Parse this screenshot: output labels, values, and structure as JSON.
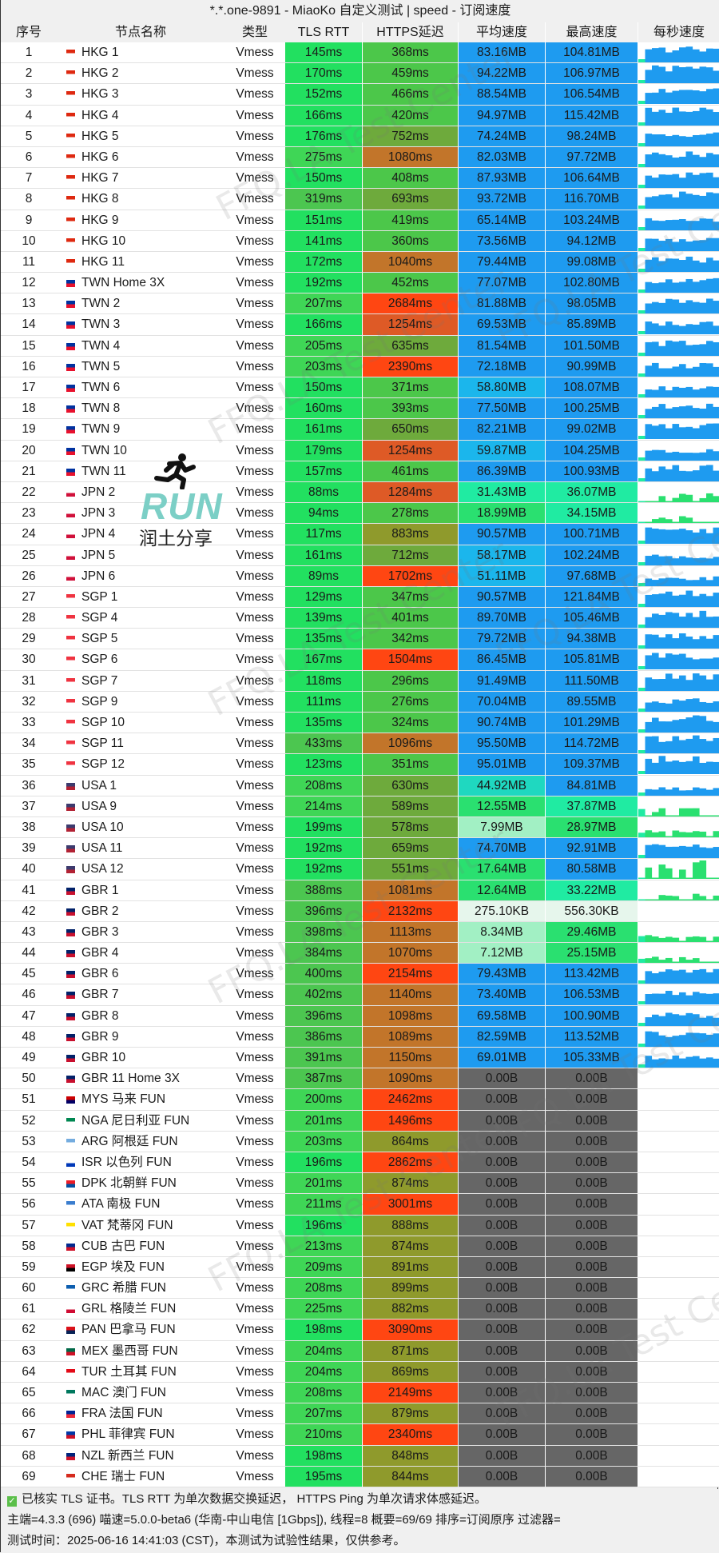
{
  "window": {
    "title": "*.*.one-9891 - MiaoKo 自定义测试 | speed - 订阅速度"
  },
  "columns": [
    "序号",
    "节点名称",
    "类型",
    "TLS RTT",
    "HTTPS延迟",
    "平均速度",
    "最高速度",
    "每秒速度"
  ],
  "rows": [
    [
      "1",
      "HKG",
      "HKG 1",
      "Vmess",
      "145ms",
      "368ms",
      "83.16MB",
      "104.81MB"
    ],
    [
      "2",
      "HKG",
      "HKG 2",
      "Vmess",
      "170ms",
      "459ms",
      "94.22MB",
      "106.97MB"
    ],
    [
      "3",
      "HKG",
      "HKG 3",
      "Vmess",
      "152ms",
      "466ms",
      "88.54MB",
      "106.54MB"
    ],
    [
      "4",
      "HKG",
      "HKG 4",
      "Vmess",
      "166ms",
      "420ms",
      "94.97MB",
      "115.42MB"
    ],
    [
      "5",
      "HKG",
      "HKG 5",
      "Vmess",
      "176ms",
      "752ms",
      "74.24MB",
      "98.24MB"
    ],
    [
      "6",
      "HKG",
      "HKG 6",
      "Vmess",
      "275ms",
      "1080ms",
      "82.03MB",
      "97.72MB"
    ],
    [
      "7",
      "HKG",
      "HKG 7",
      "Vmess",
      "150ms",
      "408ms",
      "87.93MB",
      "106.64MB"
    ],
    [
      "8",
      "HKG",
      "HKG 8",
      "Vmess",
      "319ms",
      "693ms",
      "93.72MB",
      "116.70MB"
    ],
    [
      "9",
      "HKG",
      "HKG 9",
      "Vmess",
      "151ms",
      "419ms",
      "65.14MB",
      "103.24MB"
    ],
    [
      "10",
      "HKG",
      "HKG 10",
      "Vmess",
      "141ms",
      "360ms",
      "73.56MB",
      "94.12MB"
    ],
    [
      "11",
      "HKG",
      "HKG 11",
      "Vmess",
      "172ms",
      "1040ms",
      "79.44MB",
      "99.08MB"
    ],
    [
      "12",
      "TWN",
      "TWN Home 3X",
      "Vmess",
      "192ms",
      "452ms",
      "77.07MB",
      "102.80MB"
    ],
    [
      "13",
      "TWN",
      "TWN 2",
      "Vmess",
      "207ms",
      "2684ms",
      "81.88MB",
      "98.05MB"
    ],
    [
      "14",
      "TWN",
      "TWN 3",
      "Vmess",
      "166ms",
      "1254ms",
      "69.53MB",
      "85.89MB"
    ],
    [
      "15",
      "TWN",
      "TWN 4",
      "Vmess",
      "205ms",
      "635ms",
      "81.54MB",
      "101.50MB"
    ],
    [
      "16",
      "TWN",
      "TWN 5",
      "Vmess",
      "203ms",
      "2390ms",
      "72.18MB",
      "90.99MB"
    ],
    [
      "17",
      "TWN",
      "TWN 6",
      "Vmess",
      "150ms",
      "371ms",
      "58.80MB",
      "108.07MB"
    ],
    [
      "18",
      "TWN",
      "TWN 8",
      "Vmess",
      "160ms",
      "393ms",
      "77.50MB",
      "100.25MB"
    ],
    [
      "19",
      "TWN",
      "TWN 9",
      "Vmess",
      "161ms",
      "650ms",
      "82.21MB",
      "99.02MB"
    ],
    [
      "20",
      "TWN",
      "TWN 10",
      "Vmess",
      "179ms",
      "1254ms",
      "59.87MB",
      "104.25MB"
    ],
    [
      "21",
      "TWN",
      "TWN 11",
      "Vmess",
      "157ms",
      "461ms",
      "86.39MB",
      "100.93MB"
    ],
    [
      "22",
      "JPN",
      "JPN 2",
      "Vmess",
      "88ms",
      "1284ms",
      "31.43MB",
      "36.07MB"
    ],
    [
      "23",
      "JPN",
      "JPN 3",
      "Vmess",
      "94ms",
      "278ms",
      "18.99MB",
      "34.15MB"
    ],
    [
      "24",
      "JPN",
      "JPN 4",
      "Vmess",
      "117ms",
      "883ms",
      "90.57MB",
      "100.71MB"
    ],
    [
      "25",
      "JPN",
      "JPN 5",
      "Vmess",
      "161ms",
      "712ms",
      "58.17MB",
      "102.24MB"
    ],
    [
      "26",
      "JPN",
      "JPN 6",
      "Vmess",
      "89ms",
      "1702ms",
      "51.11MB",
      "97.68MB"
    ],
    [
      "27",
      "SGP",
      "SGP 1",
      "Vmess",
      "129ms",
      "347ms",
      "90.57MB",
      "121.84MB"
    ],
    [
      "28",
      "SGP",
      "SGP 4",
      "Vmess",
      "139ms",
      "401ms",
      "89.70MB",
      "105.46MB"
    ],
    [
      "29",
      "SGP",
      "SGP 5",
      "Vmess",
      "135ms",
      "342ms",
      "79.72MB",
      "94.38MB"
    ],
    [
      "30",
      "SGP",
      "SGP 6",
      "Vmess",
      "167ms",
      "1504ms",
      "86.45MB",
      "105.81MB"
    ],
    [
      "31",
      "SGP",
      "SGP 7",
      "Vmess",
      "118ms",
      "296ms",
      "91.49MB",
      "111.50MB"
    ],
    [
      "32",
      "SGP",
      "SGP 9",
      "Vmess",
      "111ms",
      "276ms",
      "70.04MB",
      "89.55MB"
    ],
    [
      "33",
      "SGP",
      "SGP 10",
      "Vmess",
      "135ms",
      "324ms",
      "90.74MB",
      "101.29MB"
    ],
    [
      "34",
      "SGP",
      "SGP 11",
      "Vmess",
      "433ms",
      "1096ms",
      "95.50MB",
      "114.72MB"
    ],
    [
      "35",
      "SGP",
      "SGP 12",
      "Vmess",
      "123ms",
      "351ms",
      "95.01MB",
      "109.37MB"
    ],
    [
      "36",
      "USA",
      "USA 1",
      "Vmess",
      "208ms",
      "630ms",
      "44.92MB",
      "84.81MB"
    ],
    [
      "37",
      "USA",
      "USA 9",
      "Vmess",
      "214ms",
      "589ms",
      "12.55MB",
      "37.87MB"
    ],
    [
      "38",
      "USA",
      "USA 10",
      "Vmess",
      "199ms",
      "578ms",
      "7.99MB",
      "28.97MB"
    ],
    [
      "39",
      "USA",
      "USA 11",
      "Vmess",
      "192ms",
      "659ms",
      "74.70MB",
      "92.91MB"
    ],
    [
      "40",
      "USA",
      "USA 12",
      "Vmess",
      "192ms",
      "551ms",
      "17.64MB",
      "80.58MB"
    ],
    [
      "41",
      "GBR",
      "GBR 1",
      "Vmess",
      "388ms",
      "1081ms",
      "12.64MB",
      "33.22MB"
    ],
    [
      "42",
      "GBR",
      "GBR 2",
      "Vmess",
      "396ms",
      "2132ms",
      "275.10KB",
      "556.30KB"
    ],
    [
      "43",
      "GBR",
      "GBR 3",
      "Vmess",
      "398ms",
      "1113ms",
      "8.34MB",
      "29.46MB"
    ],
    [
      "44",
      "GBR",
      "GBR 4",
      "Vmess",
      "384ms",
      "1070ms",
      "7.12MB",
      "25.15MB"
    ],
    [
      "45",
      "GBR",
      "GBR 6",
      "Vmess",
      "400ms",
      "2154ms",
      "79.43MB",
      "113.42MB"
    ],
    [
      "46",
      "GBR",
      "GBR 7",
      "Vmess",
      "402ms",
      "1140ms",
      "73.40MB",
      "106.53MB"
    ],
    [
      "47",
      "GBR",
      "GBR 8",
      "Vmess",
      "396ms",
      "1098ms",
      "69.58MB",
      "100.90MB"
    ],
    [
      "48",
      "GBR",
      "GBR 9",
      "Vmess",
      "386ms",
      "1089ms",
      "82.59MB",
      "113.52MB"
    ],
    [
      "49",
      "GBR",
      "GBR 10",
      "Vmess",
      "391ms",
      "1150ms",
      "69.01MB",
      "105.33MB"
    ],
    [
      "50",
      "GBR",
      "GBR 11 Home 3X",
      "Vmess",
      "387ms",
      "1090ms",
      "0.00B",
      "0.00B"
    ],
    [
      "51",
      "MYS",
      "MYS 马来 FUN",
      "Vmess",
      "200ms",
      "2462ms",
      "0.00B",
      "0.00B"
    ],
    [
      "52",
      "NGA",
      "NGA 尼日利亚 FUN",
      "Vmess",
      "201ms",
      "1496ms",
      "0.00B",
      "0.00B"
    ],
    [
      "53",
      "ARG",
      "ARG 阿根廷 FUN",
      "Vmess",
      "203ms",
      "864ms",
      "0.00B",
      "0.00B"
    ],
    [
      "54",
      "ISR",
      "ISR 以色列 FUN",
      "Vmess",
      "196ms",
      "2862ms",
      "0.00B",
      "0.00B"
    ],
    [
      "55",
      "PRK",
      "DPK 北朝鲜 FUN",
      "Vmess",
      "201ms",
      "874ms",
      "0.00B",
      "0.00B"
    ],
    [
      "56",
      "ATA",
      "ATA 南极 FUN",
      "Vmess",
      "211ms",
      "3001ms",
      "0.00B",
      "0.00B"
    ],
    [
      "57",
      "VAT",
      "VAT 梵蒂冈 FUN",
      "Vmess",
      "196ms",
      "888ms",
      "0.00B",
      "0.00B"
    ],
    [
      "58",
      "CUB",
      "CUB 古巴 FUN",
      "Vmess",
      "213ms",
      "874ms",
      "0.00B",
      "0.00B"
    ],
    [
      "59",
      "EGY",
      "EGP 埃及 FUN",
      "Vmess",
      "209ms",
      "891ms",
      "0.00B",
      "0.00B"
    ],
    [
      "60",
      "GRC",
      "GRC 希腊 FUN",
      "Vmess",
      "208ms",
      "899ms",
      "0.00B",
      "0.00B"
    ],
    [
      "61",
      "GRL",
      "GRL 格陵兰 FUN",
      "Vmess",
      "225ms",
      "882ms",
      "0.00B",
      "0.00B"
    ],
    [
      "62",
      "PAN",
      "PAN 巴拿马 FUN",
      "Vmess",
      "198ms",
      "3090ms",
      "0.00B",
      "0.00B"
    ],
    [
      "63",
      "MEX",
      "MEX 墨西哥 FUN",
      "Vmess",
      "204ms",
      "871ms",
      "0.00B",
      "0.00B"
    ],
    [
      "64",
      "TUR",
      "TUR 土耳其 FUN",
      "Vmess",
      "204ms",
      "869ms",
      "0.00B",
      "0.00B"
    ],
    [
      "65",
      "MAC",
      "MAC 澳门 FUN",
      "Vmess",
      "208ms",
      "2149ms",
      "0.00B",
      "0.00B"
    ],
    [
      "66",
      "FRA",
      "FRA 法国 FUN",
      "Vmess",
      "207ms",
      "879ms",
      "0.00B",
      "0.00B"
    ],
    [
      "67",
      "PHL",
      "PHL 菲律宾 FUN",
      "Vmess",
      "210ms",
      "2340ms",
      "0.00B",
      "0.00B"
    ],
    [
      "68",
      "NZL",
      "NZL 新西兰 FUN",
      "Vmess",
      "198ms",
      "848ms",
      "0.00B",
      "0.00B"
    ],
    [
      "69",
      "CHE",
      "CHE 瑞士 FUN",
      "Vmess",
      "195ms",
      "844ms",
      "0.00B",
      "0.00B"
    ]
  ],
  "flag_colors": {
    "HKG": [
      "#de2910",
      "#fff"
    ],
    "TWN": [
      "#0032a0",
      "#e8112d"
    ],
    "JPN": [
      "#fff",
      "#d0103a"
    ],
    "SGP": [
      "#ef3340",
      "#fff"
    ],
    "USA": [
      "#3c3b6e",
      "#b22234"
    ],
    "GBR": [
      "#012169",
      "#c8102e"
    ],
    "MYS": [
      "#cc0001",
      "#010066"
    ],
    "NGA": [
      "#008751",
      "#fff"
    ],
    "ARG": [
      "#74acdf",
      "#fff"
    ],
    "ISR": [
      "#fff",
      "#0038b8"
    ],
    "PRK": [
      "#ed1c27",
      "#024fa2"
    ],
    "ATA": [
      "#3a7dce",
      "#fff"
    ],
    "VAT": [
      "#ffe000",
      "#fff"
    ],
    "CUB": [
      "#002a8f",
      "#cf142b"
    ],
    "EGY": [
      "#ce1126",
      "#000"
    ],
    "GRC": [
      "#0d5eaf",
      "#fff"
    ],
    "GRL": [
      "#fff",
      "#d00c33"
    ],
    "PAN": [
      "#da121a",
      "#072357"
    ],
    "MEX": [
      "#006847",
      "#ce1126"
    ],
    "TUR": [
      "#e30a17",
      "#fff"
    ],
    "MAC": [
      "#00785e",
      "#fff"
    ],
    "FRA": [
      "#002395",
      "#ed2939"
    ],
    "PHL": [
      "#0038a8",
      "#ce1126"
    ],
    "NZL": [
      "#00247d",
      "#cc142b"
    ],
    "CHE": [
      "#d52b1e",
      "#fff"
    ]
  },
  "colors": {
    "tls_fast": "#22e060",
    "tls_mid": "#3fd656",
    "tls_slow": "#4cc650",
    "https_good": "#4cc74a",
    "https_ok": "#6eaa3c",
    "https_olive": "#8f9a2c",
    "https_brown": "#c2752a",
    "https_orange": "#de5a26",
    "https_red": "#ff4612",
    "speed_blue": "#1e9bf0",
    "speed_lightblue": "#1bb6ec",
    "speed_teal": "#1fd8c0",
    "speed_cyan_green": "#20eba2",
    "speed_green": "#2ae070",
    "speed_light": "#a2f0c4",
    "speed_kb": "#e6f6ec",
    "speed_zero": "#666666"
  },
  "footer": {
    "line1": "已核实 TLS 证书。TLS RTT 为单次数据交换延迟， HTTPS Ping 为单次请求体感延迟。",
    "line2": "主端=4.3.3 (696) 喵速=5.0.0-beta6 (华南-中山电信 [1Gbps]), 线程=8 概要=69/69 排序=订阅原序 过滤器=",
    "line3": "测试时间：2025-06-16 14:41:03 (CST)，本测试为试验性结果，仅供参考。"
  },
  "watermark": {
    "text": "FFQ.LA Test Center"
  },
  "logo": {
    "text": "RUN",
    "subtitle": "润土分享"
  }
}
